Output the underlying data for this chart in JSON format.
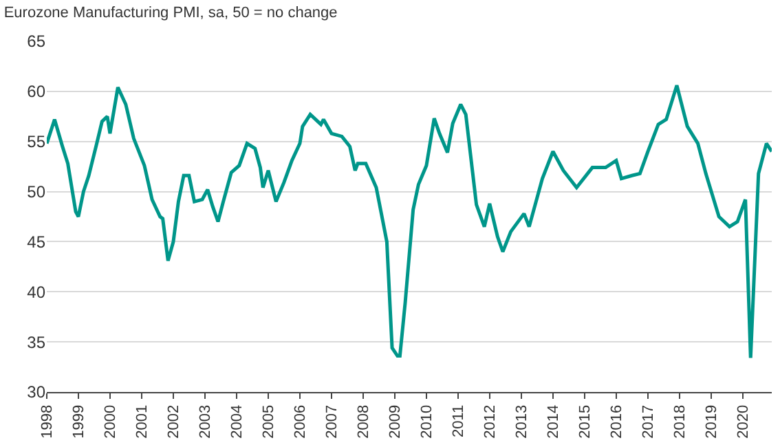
{
  "chart_data": {
    "type": "line",
    "title": "Eurozone Manufacturing PMI, sa, 50 = no change",
    "x": [
      "1998-01",
      "1998-04",
      "1998-07",
      "1998-09",
      "1998-12",
      "1999-01",
      "1999-03",
      "1999-05",
      "1999-08",
      "1999-10",
      "1999-12",
      "2000-01",
      "2000-04",
      "2000-07",
      "2000-10",
      "2001-02",
      "2001-05",
      "2001-08",
      "2001-09",
      "2001-11",
      "2002-01",
      "2002-03",
      "2002-05",
      "2002-07",
      "2002-09",
      "2002-12",
      "2003-02",
      "2003-04",
      "2003-06",
      "2003-08",
      "2003-11",
      "2004-02",
      "2004-05",
      "2004-08",
      "2004-10",
      "2004-11",
      "2005-01",
      "2005-04",
      "2005-07",
      "2005-10",
      "2006-01",
      "2006-02",
      "2006-05",
      "2006-09",
      "2006-10",
      "2007-01",
      "2007-05",
      "2007-08",
      "2007-10",
      "2007-11",
      "2008-02",
      "2008-06",
      "2008-08",
      "2008-10",
      "2008-12",
      "2009-02",
      "2009-03",
      "2009-05",
      "2009-08",
      "2009-10",
      "2010-01",
      "2010-04",
      "2010-06",
      "2010-09",
      "2010-11",
      "2011-02",
      "2011-04",
      "2011-08",
      "2011-11",
      "2012-01",
      "2012-04",
      "2012-06",
      "2012-09",
      "2013-02",
      "2013-04",
      "2013-09",
      "2014-01",
      "2014-05",
      "2014-10",
      "2015-04",
      "2015-09",
      "2016-01",
      "2016-03",
      "2016-07",
      "2016-10",
      "2017-01",
      "2017-05",
      "2017-08",
      "2017-12",
      "2018-04",
      "2018-08",
      "2018-11",
      "2019-04",
      "2019-08",
      "2019-11",
      "2020-02",
      "2020-04",
      "2020-07",
      "2020-10",
      "2020-12"
    ],
    "series": [
      {
        "color": "#00968a",
        "values": [
          54.8,
          57.2,
          54.5,
          52.8,
          48,
          47.5,
          50,
          51.6,
          54.8,
          57,
          57.5,
          55.8,
          60.4,
          58.7,
          55.3,
          52.6,
          49.2,
          47.5,
          47.3,
          43.1,
          45,
          49,
          51.6,
          51.6,
          49,
          49.2,
          50.2,
          48.5,
          47,
          49,
          51.9,
          52.6,
          54.8,
          54.3,
          52.4,
          50.4,
          52.1,
          49,
          50.9,
          53.1,
          54.8,
          56.5,
          57.7,
          56.7,
          57.2,
          55.8,
          55.5,
          54.5,
          52.1,
          52.8,
          52.8,
          50.4,
          47.7,
          45,
          34.4,
          33.6,
          33.6,
          38.9,
          48.2,
          50.7,
          52.6,
          57.3,
          55.8,
          53.9,
          56.8,
          58.7,
          57.7,
          48.7,
          46.5,
          48.8,
          45.5,
          44,
          46,
          47.8,
          46.5,
          51.3,
          54,
          52.1,
          50.4,
          52.4,
          52.4,
          53.1,
          51.3,
          51.6,
          51.8,
          54,
          56.7,
          57.2,
          60.6,
          56.5,
          54.8,
          51.8,
          47.5,
          46.5,
          47,
          49.2,
          33.4,
          51.8,
          54.8,
          54
        ]
      }
    ],
    "xlim": [
      "1998-01",
      "2020-12"
    ],
    "xticks": [
      {
        "value": "1998-01",
        "label": "1998"
      },
      {
        "value": "1999-01",
        "label": "1999"
      },
      {
        "value": "2000-01",
        "label": "2000"
      },
      {
        "value": "2001-01",
        "label": "2001"
      },
      {
        "value": "2002-01",
        "label": "2002"
      },
      {
        "value": "2003-01",
        "label": "2003"
      },
      {
        "value": "2004-01",
        "label": "2004"
      },
      {
        "value": "2005-01",
        "label": "2005"
      },
      {
        "value": "2006-01",
        "label": "2006"
      },
      {
        "value": "2007-01",
        "label": "2007"
      },
      {
        "value": "2008-01",
        "label": "2008"
      },
      {
        "value": "2009-01",
        "label": "2009"
      },
      {
        "value": "2010-01",
        "label": "2010"
      },
      {
        "value": "2011-01",
        "label": "2011"
      },
      {
        "value": "2012-01",
        "label": "2012"
      },
      {
        "value": "2013-01",
        "label": "2013"
      },
      {
        "value": "2014-01",
        "label": "2014"
      },
      {
        "value": "2015-01",
        "label": "2015"
      },
      {
        "value": "2016-01",
        "label": "2016"
      },
      {
        "value": "2017-01",
        "label": "2017"
      },
      {
        "value": "2018-01",
        "label": "2018"
      },
      {
        "value": "2019-01",
        "label": "2019"
      },
      {
        "value": "2020-01",
        "label": "2020"
      }
    ],
    "ylim": [
      30,
      65
    ],
    "yticks": [
      30,
      35,
      40,
      45,
      50,
      55,
      60,
      65
    ],
    "grid": "y",
    "marker": "none",
    "line_style": "solid"
  }
}
